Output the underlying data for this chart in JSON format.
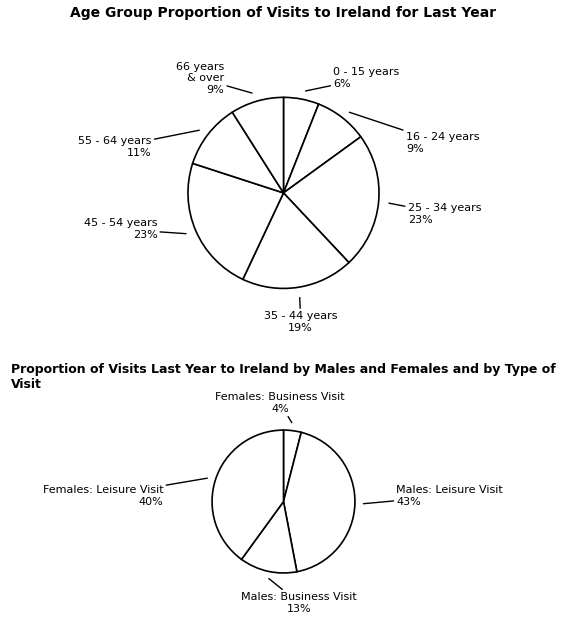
{
  "chart1_title": "Age Group Proportion of Visits to Ireland for Last Year",
  "chart1_values": [
    6,
    9,
    23,
    19,
    23,
    11,
    9
  ],
  "chart1_labels": [
    "0 - 15 years",
    "16 - 24 years",
    "25 - 34 years",
    "35 - 44 years",
    "45 - 54 years",
    "55 - 64 years",
    "66 years\n& over"
  ],
  "chart1_pcts": [
    "6%",
    "9%",
    "23%",
    "19%",
    "23%",
    "11%",
    "9%"
  ],
  "chart1_startangle": 90,
  "chart2_title": "Proportion of Visits Last Year to Ireland by Males and Females and by Type of Visit",
  "chart2_values": [
    43,
    13,
    4,
    40
  ],
  "chart2_labels": [
    "Males: Leisure Visit",
    "Males: Business Visit",
    "Females: Business Visit",
    "Females: Leisure Visit"
  ],
  "chart2_pcts": [
    "43%",
    "13%",
    "4%",
    "40%"
  ],
  "chart2_startangle": 90,
  "face_color": "#ffffff",
  "pie_edge_color": "#000000",
  "pie_fill_color": "#ffffff",
  "text_color": "#000000",
  "line_color": "#000000",
  "fontsize_title1": 10,
  "fontsize_title2": 9,
  "fontsize_label": 8
}
